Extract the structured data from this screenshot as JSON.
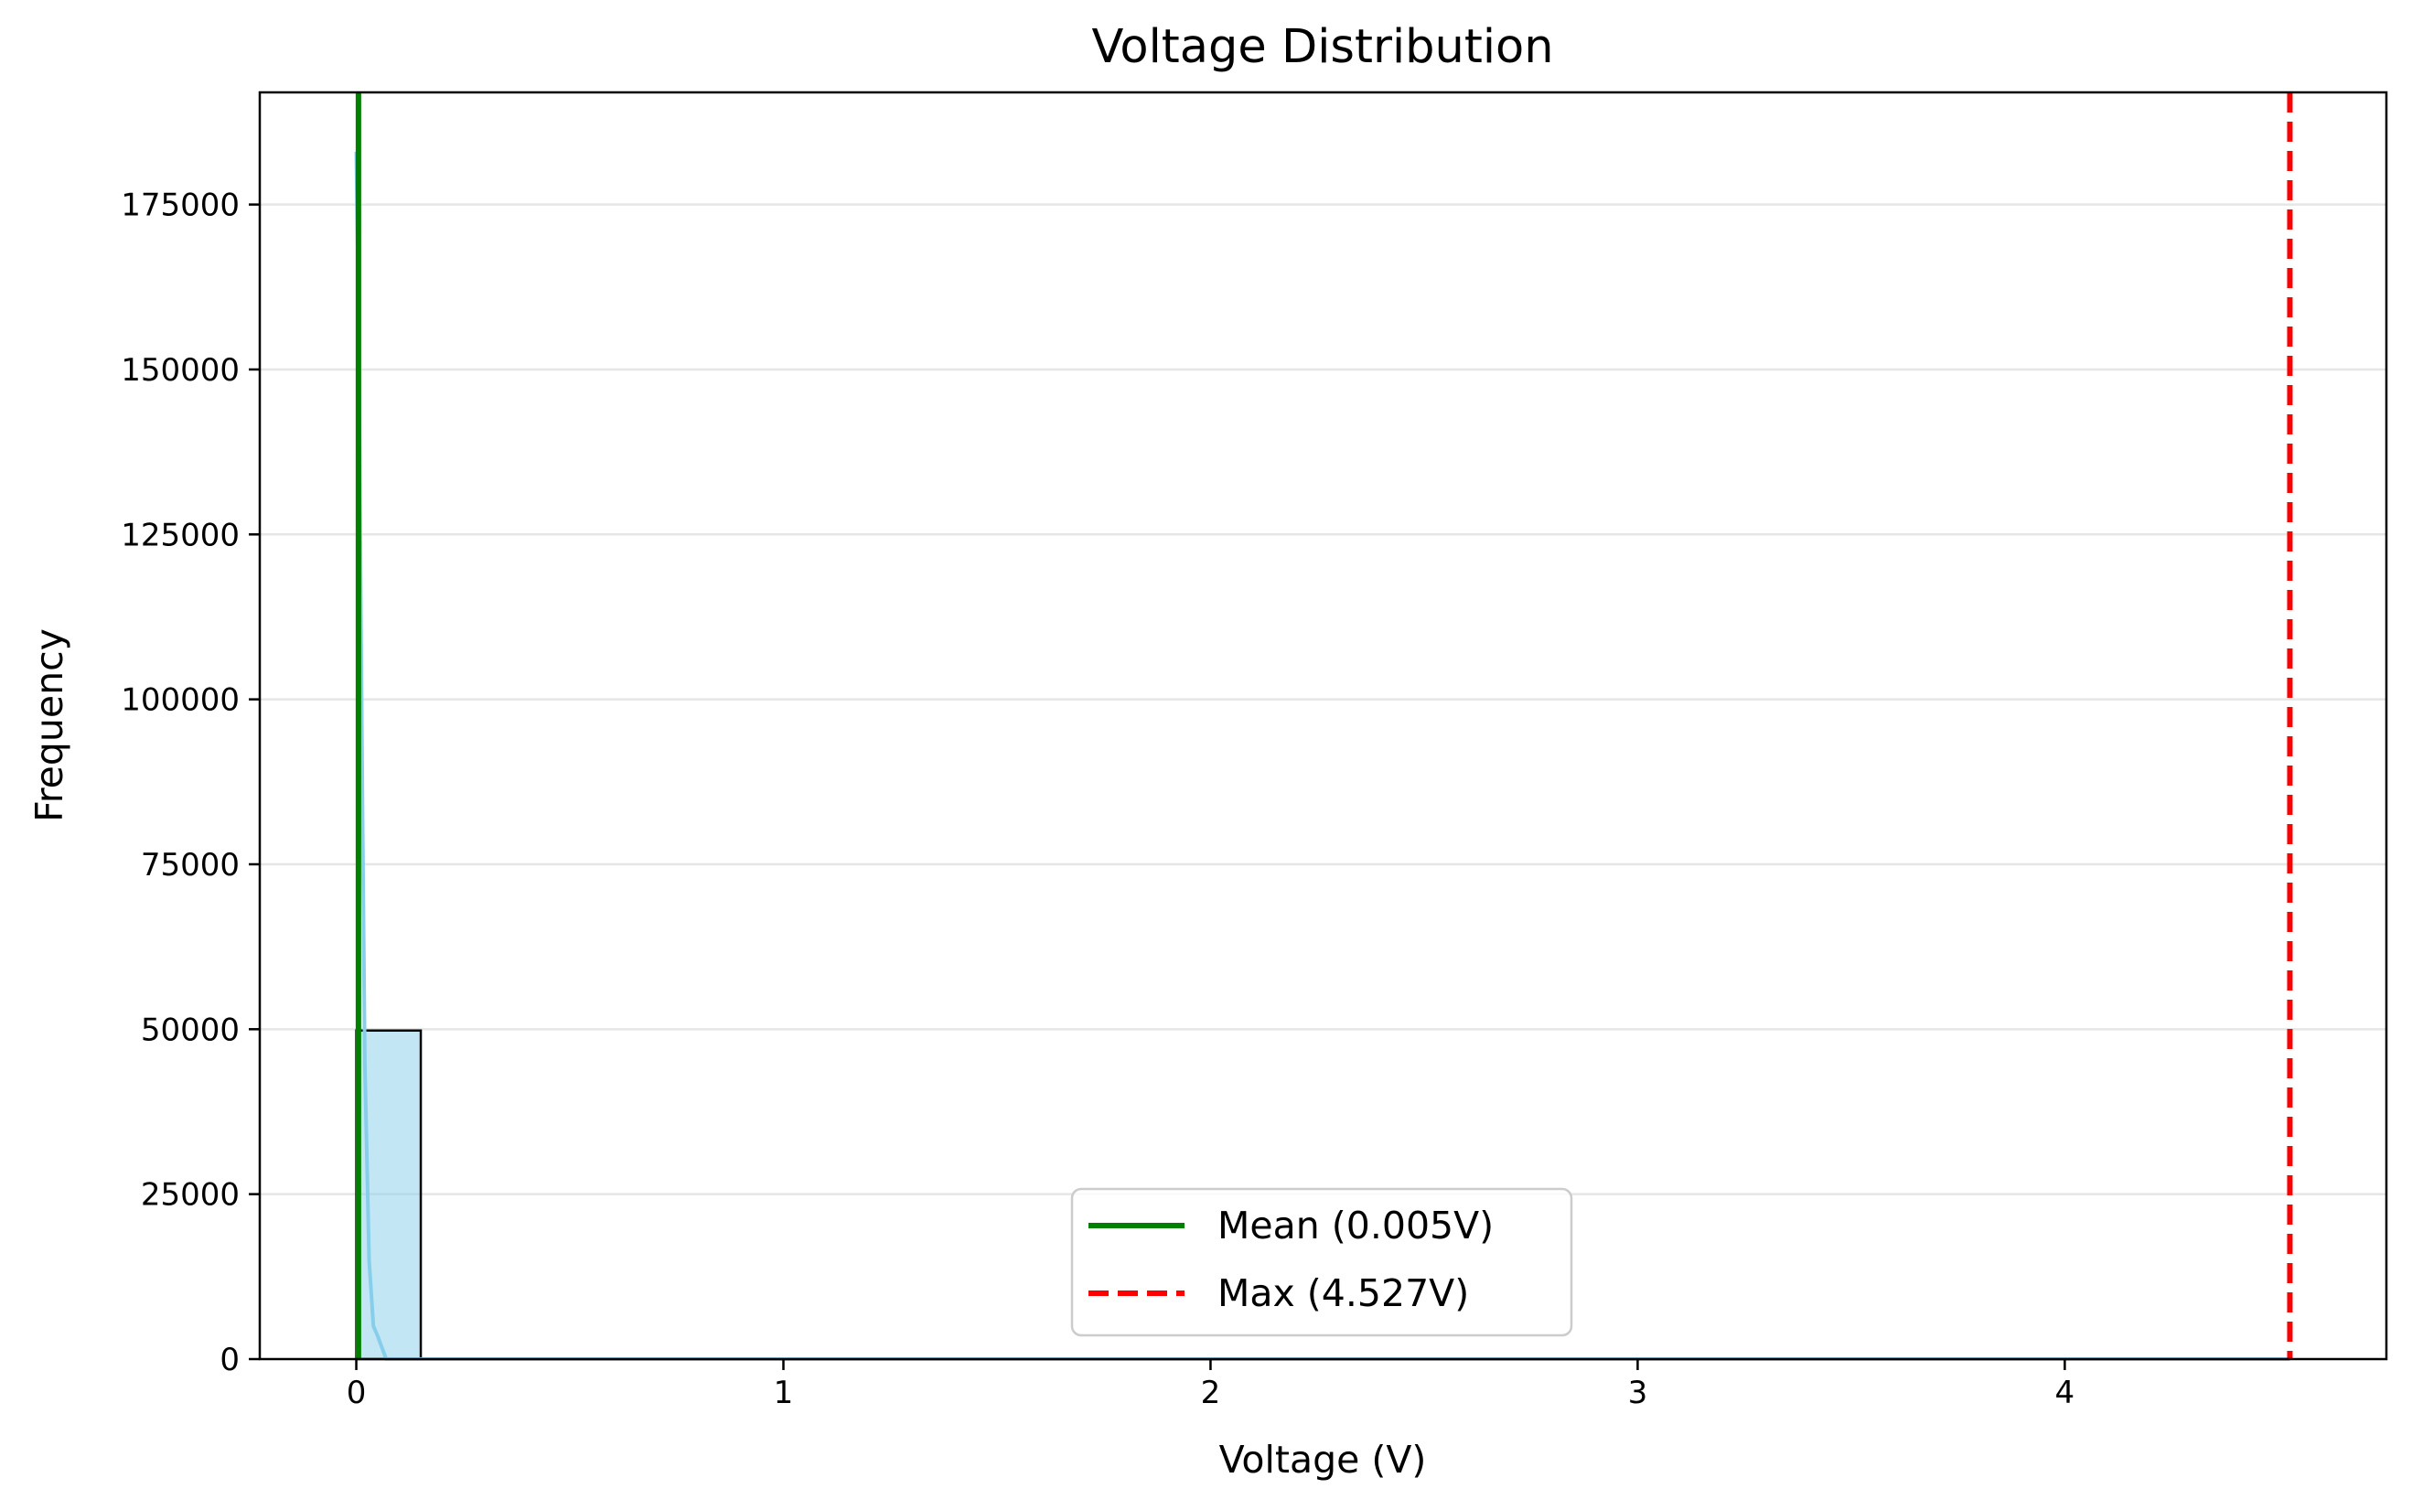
{
  "chart_data": {
    "type": "bar",
    "title": "Voltage Distribution",
    "xlabel": "Voltage (V)",
    "ylabel": "Frequency",
    "xlim": [
      -0.226,
      4.753
    ],
    "ylim": [
      0,
      192000
    ],
    "x_ticks": [
      0,
      1,
      2,
      3,
      4
    ],
    "x_tick_labels": [
      "0",
      "1",
      "2",
      "3",
      "4"
    ],
    "y_ticks": [
      0,
      25000,
      50000,
      75000,
      100000,
      125000,
      150000,
      175000
    ],
    "y_tick_labels": [
      "0",
      "25000",
      "50000",
      "75000",
      "100000",
      "125000",
      "150000",
      "175000"
    ],
    "grid": "y",
    "histogram": {
      "bins": [
        {
          "x0": 0.0,
          "x1": 0.151,
          "count": 49800
        }
      ],
      "fill_color": "#87ceeb",
      "edge_color": "#000000"
    },
    "kde": {
      "color": "#87ceeb",
      "x": [
        0.0,
        0.005,
        0.01,
        0.015,
        0.02,
        0.03,
        0.04,
        0.05,
        0.07,
        0.1,
        0.15,
        0.3,
        0.5,
        1.0,
        2.0,
        3.0,
        4.0,
        4.527
      ],
      "y": [
        183000,
        160000,
        120000,
        80000,
        45000,
        15000,
        5000,
        3500,
        0,
        0,
        0,
        0,
        0,
        0,
        0,
        0,
        0,
        0
      ]
    },
    "reference_lines": [
      {
        "name": "Mean (0.005V)",
        "x": 0.005,
        "color": "#008000",
        "style": "solid"
      },
      {
        "name": "Max (4.527V)",
        "x": 4.527,
        "color": "#ff0000",
        "style": "dashed"
      }
    ],
    "legend": {
      "position": "lower-center",
      "entries": [
        "Mean (0.005V)",
        "Max (4.527V)"
      ]
    }
  }
}
